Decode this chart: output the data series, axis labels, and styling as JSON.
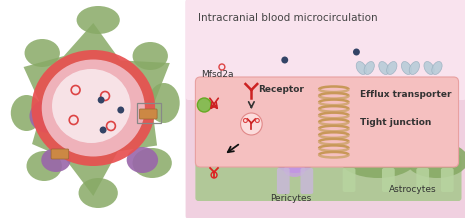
{
  "title": "Intracranial blood microcirculation",
  "bg_color": "#ffffff",
  "labels": {
    "title": "Intracranial blood microcirculation",
    "mfsd2a": "Mfsd2a",
    "receptor": "Receptor",
    "efflux": "Efflux transporter",
    "tight": "Tight junction",
    "astrocytes": "Astrocytes",
    "pericytes": "Pericytes"
  },
  "colors": {
    "right_panel_top": "#f5d8e8",
    "right_panel_bottom": "#e8d0dc",
    "endo_cell": "#f5c0c0",
    "endo_edge": "#e8a0a0",
    "coil": "#d4a060",
    "green_cell": "#88bb55",
    "green_astro": "#88aa66",
    "purple_blob": "#9966aa",
    "red_ring": "#e85050",
    "pink_inner": "#f0b8c0",
    "nucleus": "#f8e8ec",
    "brown_rect": "#cc8844",
    "dark_dot": "#334466",
    "red_dot_edge": "#dd4444",
    "pericyte": "#b8a8d0",
    "pericyte_body": "#aa88cc",
    "bottom_green": "#aac890",
    "foot_green": "#b8d4a0",
    "foot_purple": "#c8b8d8",
    "wing_blue": "#b8ccd8",
    "title_color": "#444444",
    "label_color": "#333333"
  }
}
